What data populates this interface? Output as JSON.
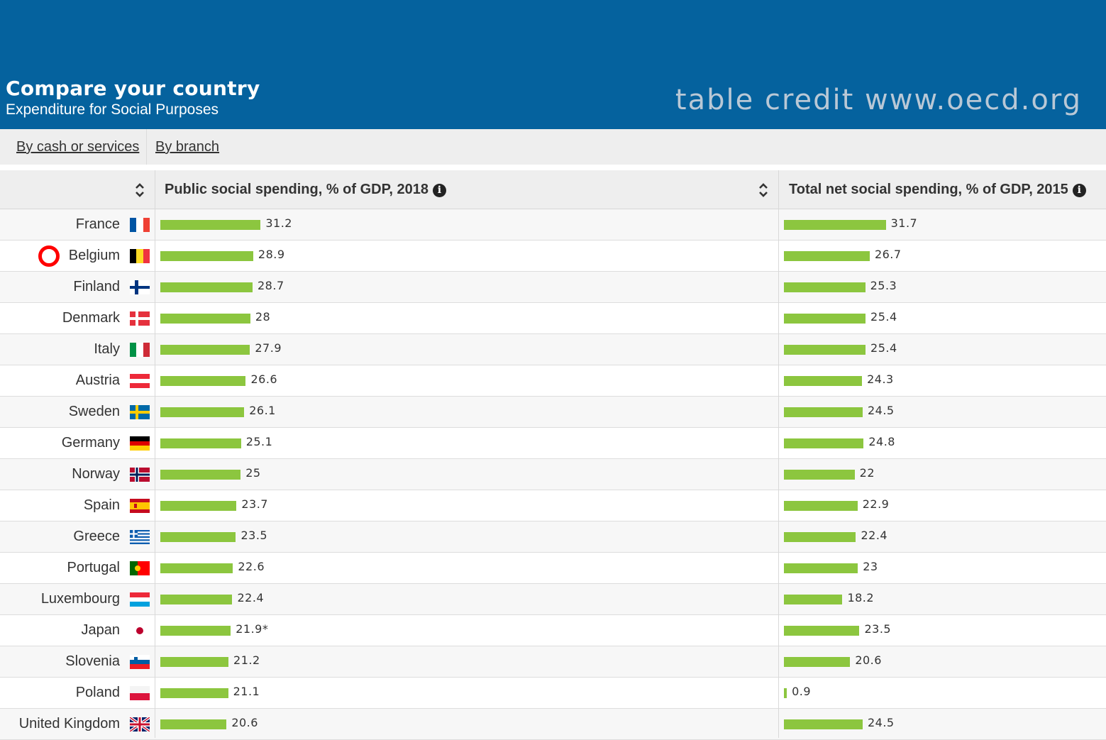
{
  "header": {
    "title": "Compare your country",
    "subtitle": "Expenditure for Social Purposes",
    "credit": "table credit www.oecd.org"
  },
  "tabs": [
    {
      "label": "By cash or services"
    },
    {
      "label": "By branch"
    }
  ],
  "columns": {
    "public": "Public social spending, % of GDP, 2018",
    "total": "Total net social spending, % of GDP, 2015"
  },
  "colors": {
    "header_bg": "#05629e",
    "bar": "#8cc63f",
    "highlight_marker": "#ff0000"
  },
  "highlighted_country": "Belgium",
  "chart_data": {
    "type": "bar",
    "categories": [
      "France",
      "Belgium",
      "Finland",
      "Denmark",
      "Italy",
      "Austria",
      "Sweden",
      "Germany",
      "Norway",
      "Spain",
      "Greece",
      "Portugal",
      "Luxembourg",
      "Japan",
      "Slovenia",
      "Poland",
      "United Kingdom"
    ],
    "series": [
      {
        "name": "Public social spending, % of GDP, 2018",
        "values": [
          31.2,
          28.9,
          28.7,
          28,
          27.9,
          26.6,
          26.1,
          25.1,
          25,
          23.7,
          23.5,
          22.6,
          22.4,
          21.9,
          21.2,
          21.1,
          20.6
        ],
        "labels": [
          "31.2",
          "28.9",
          "28.7",
          "28",
          "27.9",
          "26.6",
          "26.1",
          "25.1",
          "25",
          "23.7",
          "23.5",
          "22.6",
          "22.4",
          "21.9*",
          "21.2",
          "21.1",
          "20.6"
        ]
      },
      {
        "name": "Total net social spending, % of GDP, 2015",
        "values": [
          31.7,
          26.7,
          25.3,
          25.4,
          25.4,
          24.3,
          24.5,
          24.8,
          22,
          22.9,
          22.4,
          23,
          18.2,
          23.5,
          20.6,
          0.9,
          24.5
        ],
        "labels": [
          "31.7",
          "26.7",
          "25.3",
          "25.4",
          "25.4",
          "24.3",
          "24.5",
          "24.8",
          "22",
          "22.9",
          "22.4",
          "23",
          "18.2",
          "23.5",
          "20.6",
          "0.9",
          "24.5"
        ]
      }
    ],
    "flags": [
      "flag-fr",
      "flag-be",
      "flag-fi",
      "flag-dk",
      "flag-it",
      "flag-at",
      "flag-se",
      "flag-de",
      "flag-no",
      "flag-es",
      "flag-gr",
      "flag-pt",
      "flag-lu",
      "flag-jp",
      "flag-si",
      "flag-pl",
      "flag-gb"
    ]
  }
}
